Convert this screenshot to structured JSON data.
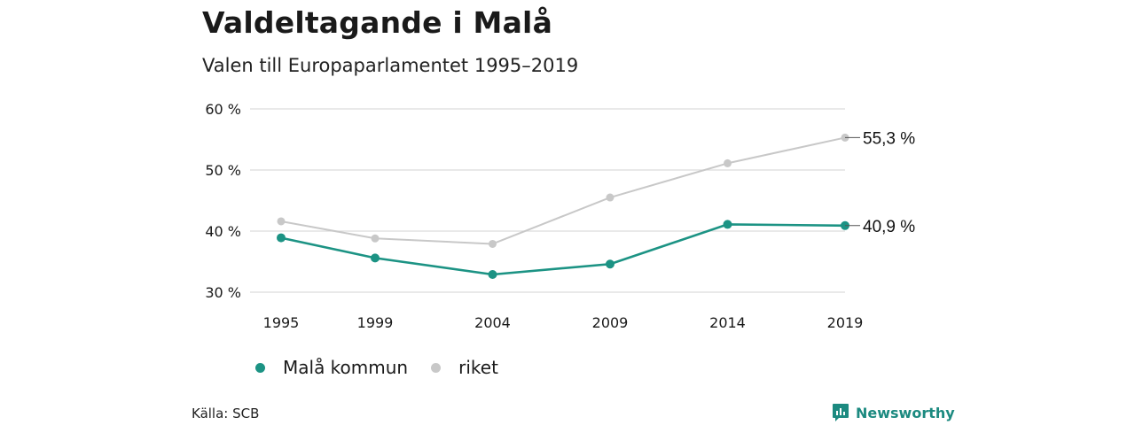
{
  "title": "Valdeltagande i Malå",
  "subtitle": "Valen till Europaparlamentet 1995–2019",
  "source": "Källa: SCB",
  "brand": "Newsworthy",
  "colors": {
    "primary": "#1c9384",
    "secondary": "#c8c8c8",
    "grid": "#dcdcdc",
    "brand": "#1c8a80"
  },
  "chart_data": {
    "type": "line",
    "x": [
      1995,
      1999,
      2004,
      2009,
      2014,
      2019
    ],
    "x_tick_labels": [
      "1995",
      "1999",
      "2004",
      "2009",
      "2014",
      "2019"
    ],
    "ylim": [
      30,
      60
    ],
    "y_ticks": [
      30,
      40,
      50,
      60
    ],
    "y_tick_labels": [
      "30 %",
      "40 %",
      "50 %",
      "60 %"
    ],
    "grid": true,
    "legend_position": "bottom-left",
    "series": [
      {
        "name": "Malå kommun",
        "color": "#1c9384",
        "values": [
          38.9,
          35.6,
          32.9,
          34.6,
          41.1,
          40.9
        ],
        "end_label": "40,9 %"
      },
      {
        "name": "riket",
        "color": "#c8c8c8",
        "values": [
          41.6,
          38.8,
          37.9,
          45.5,
          51.1,
          55.3
        ],
        "end_label": "55,3 %"
      }
    ]
  }
}
